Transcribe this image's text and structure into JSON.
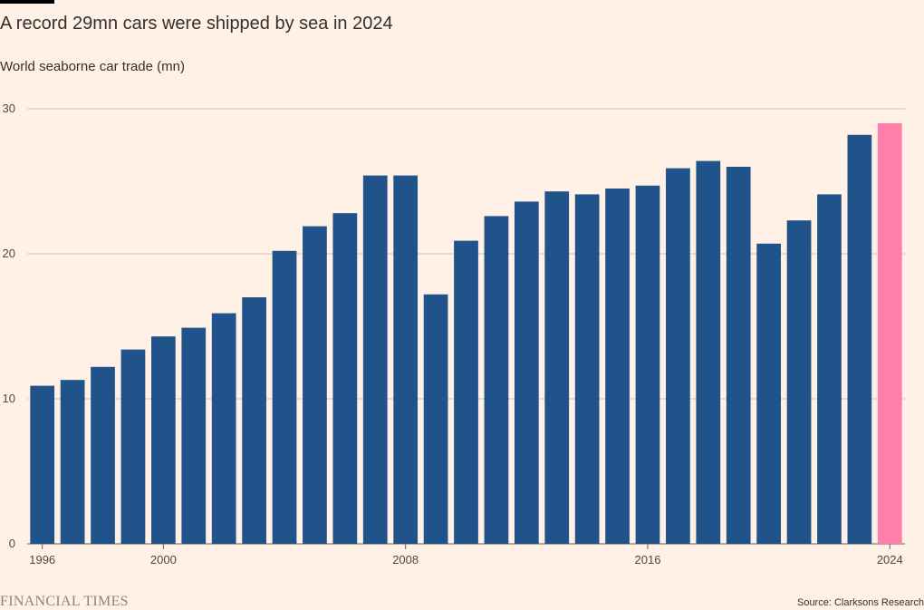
{
  "header": {
    "title": "A record 29mn cars were shipped by sea in 2024",
    "subtitle": "World seaborne car trade (mn)"
  },
  "footer": {
    "brand": "FINANCIAL TIMES",
    "source": "Source: Clarksons Research"
  },
  "colors": {
    "bar": "#1f538a",
    "highlight": "#ff7faa",
    "grid": "#ccc1b7",
    "background": "#fff1e5"
  },
  "chart_data": {
    "type": "bar",
    "title": "A record 29mn cars were shipped by sea in 2024",
    "ylabel": "World seaborne car trade (mn)",
    "xlabel": "",
    "ylim": [
      0,
      30
    ],
    "yticks": [
      0,
      10,
      20,
      30
    ],
    "xticks": [
      1996,
      2000,
      2008,
      2016,
      2024
    ],
    "grid": true,
    "highlight_category": 2024,
    "categories": [
      1996,
      1997,
      1998,
      1999,
      2000,
      2001,
      2002,
      2003,
      2004,
      2005,
      2006,
      2007,
      2008,
      2009,
      2010,
      2011,
      2012,
      2013,
      2014,
      2015,
      2016,
      2017,
      2018,
      2019,
      2020,
      2021,
      2022,
      2023,
      2024
    ],
    "values": [
      10.9,
      11.3,
      12.2,
      13.4,
      14.3,
      14.9,
      15.9,
      17.0,
      20.2,
      21.9,
      22.8,
      25.4,
      25.4,
      17.2,
      20.9,
      22.6,
      23.6,
      24.3,
      24.1,
      24.5,
      24.7,
      25.9,
      26.4,
      26.0,
      20.7,
      22.3,
      24.1,
      28.2,
      29.0
    ]
  }
}
